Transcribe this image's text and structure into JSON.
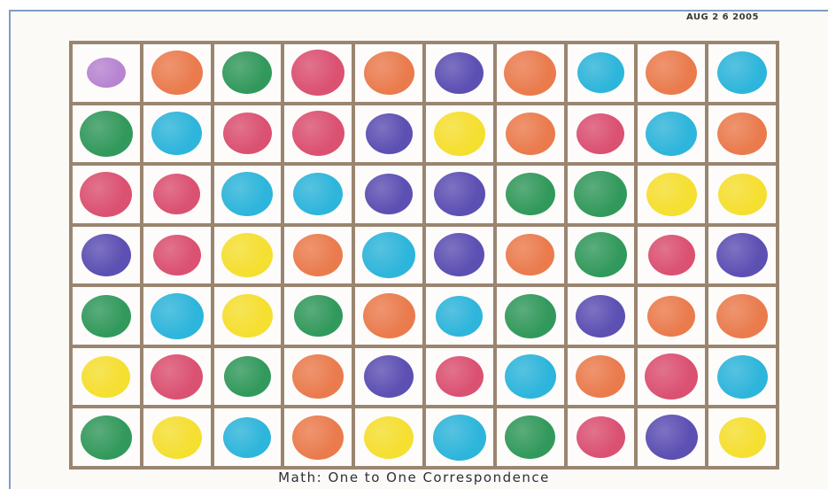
{
  "date_stamp": "AUG 2 6 2005",
  "caption": "Math: One to One Correspondence",
  "colors": {
    "violet": "#b983d4",
    "orange": "#ef7a4a",
    "green": "#2e9a5a",
    "pink": "#e04f72",
    "blue": "#28b6de",
    "purple": "#5c4fb8",
    "yellow": "#f7df27",
    "frame_border": "#7f9dc4",
    "grid_line": "#9a8570"
  },
  "grid": {
    "rows": 7,
    "columns": 10,
    "cells": [
      [
        "violet",
        "orange",
        "green",
        "pink",
        "orange",
        "purple",
        "orange",
        "blue",
        "orange",
        "blue"
      ],
      [
        "green",
        "blue",
        "pink",
        "pink",
        "purple",
        "yellow",
        "orange",
        "pink",
        "blue",
        "orange"
      ],
      [
        "pink",
        "pink",
        "blue",
        "blue",
        "purple",
        "purple",
        "green",
        "green",
        "yellow",
        "yellow"
      ],
      [
        "purple",
        "pink",
        "yellow",
        "orange",
        "blue",
        "purple",
        "orange",
        "green",
        "pink",
        "purple"
      ],
      [
        "green",
        "blue",
        "yellow",
        "green",
        "orange",
        "blue",
        "green",
        "purple",
        "orange",
        "orange"
      ],
      [
        "yellow",
        "pink",
        "green",
        "orange",
        "purple",
        "pink",
        "blue",
        "orange",
        "pink",
        "blue"
      ],
      [
        "green",
        "yellow",
        "blue",
        "orange",
        "yellow",
        "blue",
        "green",
        "pink",
        "purple",
        "yellow"
      ]
    ]
  }
}
